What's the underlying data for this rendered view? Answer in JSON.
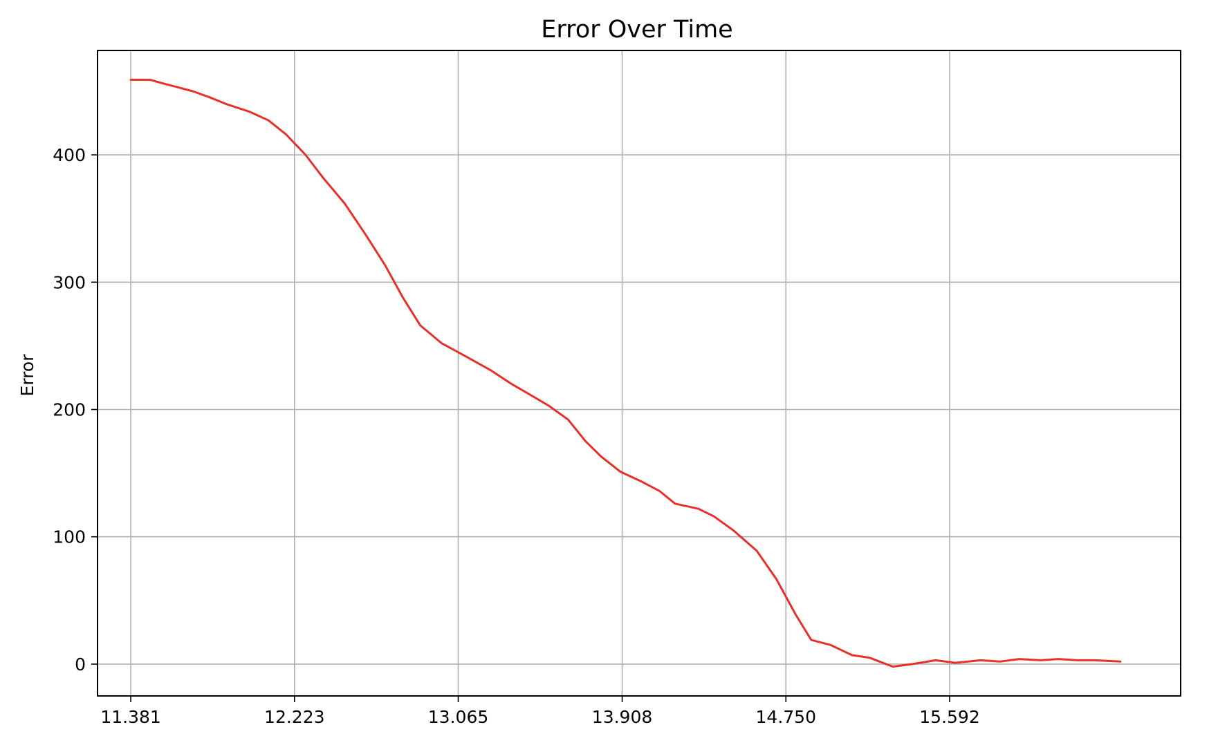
{
  "chart_data": {
    "type": "line",
    "title": "Error Over Time",
    "xlabel": "",
    "ylabel": "Error",
    "xlim": [
      11.21,
      16.78
    ],
    "ylim": [
      -25,
      482
    ],
    "grid": true,
    "x_ticks": [
      11.381,
      12.223,
      13.065,
      13.908,
      14.75,
      15.592
    ],
    "x_tick_labels": [
      "11.381",
      "12.223",
      "13.065",
      "13.908",
      "14.750",
      "15.592"
    ],
    "y_ticks": [
      0,
      100,
      200,
      300,
      400
    ],
    "y_tick_labels": [
      "0",
      "100",
      "200",
      "300",
      "400"
    ],
    "series": [
      {
        "name": "Error",
        "color": "#e8302a",
        "x": [
          11.381,
          11.48,
          11.55,
          11.7,
          11.7,
          11.79,
          11.79,
          11.87,
          11.87,
          11.99,
          11.99,
          12.09,
          12.09,
          12.18,
          12.18,
          12.28,
          12.28,
          12.37,
          12.37,
          12.48,
          12.48,
          12.59,
          12.59,
          12.69,
          12.69,
          12.78,
          12.78,
          12.87,
          12.87,
          12.98,
          12.98,
          13.1,
          13.1,
          13.23,
          13.23,
          13.34,
          13.34,
          13.43,
          13.43,
          13.53,
          13.53,
          13.63,
          13.63,
          13.72,
          13.72,
          13.8,
          13.8,
          13.9,
          13.9,
          14.0,
          14.0,
          14.1,
          14.1,
          14.18,
          14.18,
          14.3,
          14.3,
          14.38,
          14.38,
          14.48,
          14.48,
          14.6,
          14.6,
          14.7,
          14.7,
          14.8,
          14.8,
          14.88,
          14.88,
          14.98,
          14.98,
          15.09,
          15.09,
          15.18,
          15.18,
          15.3,
          15.3,
          15.4,
          15.4,
          15.52,
          15.52,
          15.62,
          15.62,
          15.75,
          15.75,
          15.85,
          15.85,
          15.95,
          15.95,
          16.06,
          16.06,
          16.15,
          16.15,
          16.25,
          16.25,
          16.34,
          16.34,
          16.47
        ],
        "y": [
          459,
          459,
          456,
          450,
          450,
          445,
          445,
          440,
          440,
          434,
          434,
          427,
          427,
          416,
          416,
          400,
          400,
          382,
          382,
          362,
          362,
          337,
          337,
          313,
          313,
          288,
          288,
          266,
          266,
          252,
          252,
          242,
          242,
          231,
          231,
          220,
          220,
          212,
          212,
          203,
          203,
          192,
          192,
          175,
          175,
          163,
          163,
          151,
          151,
          144,
          144,
          136,
          136,
          126,
          126,
          122,
          122,
          116,
          116,
          105,
          105,
          89,
          89,
          67,
          67,
          39,
          39,
          19,
          19,
          15,
          15,
          7,
          7,
          5,
          5,
          -2,
          -2,
          0,
          0,
          3,
          3,
          1,
          1,
          3,
          3,
          2,
          2,
          4,
          4,
          3,
          3,
          4,
          4,
          3,
          3,
          3,
          3,
          2
        ]
      }
    ]
  }
}
